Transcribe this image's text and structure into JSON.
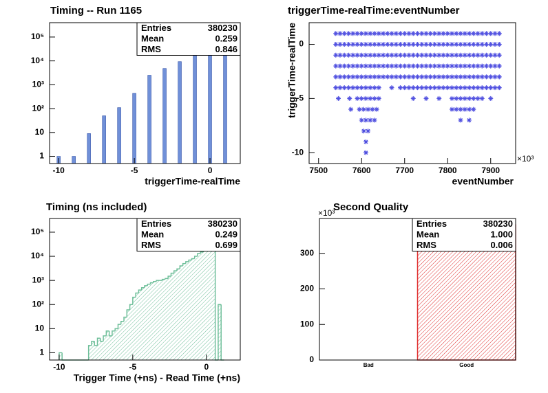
{
  "chart_data": [
    {
      "type": "bar",
      "title": "Timing -- Run 1165",
      "x_label": "triggerTime-realTime",
      "x": [
        -10,
        -9,
        -8,
        -7,
        -6,
        -5,
        -4,
        -3,
        -2,
        -1,
        0,
        1
      ],
      "values": [
        1,
        1,
        9,
        50,
        110,
        440,
        2500,
        4800,
        9300,
        28000,
        210000,
        210000
      ],
      "color": "#7090d8",
      "log_y": true,
      "xlim": [
        -10.6,
        2.0
      ],
      "xticks": [
        -10,
        -5,
        0
      ],
      "ylim": [
        0.5,
        400000
      ],
      "yticks": [
        1,
        10,
        {
          "value": 100,
          "label": "10²"
        },
        {
          "value": 1000,
          "label": "10³"
        },
        {
          "value": 10000,
          "label": "10⁴"
        },
        {
          "value": 100000,
          "label": "10⁵"
        }
      ],
      "stats": [
        {
          "name": "Entries",
          "value": "380230"
        },
        {
          "name": "Mean",
          "value": "0.259"
        },
        {
          "name": "RMS",
          "value": "0.846"
        }
      ]
    },
    {
      "type": "scatter",
      "title": "triggerTime-realTime:eventNumber",
      "x_label": "eventNumber",
      "y_label": "triggerTime-realTime",
      "x_exponent": "×10³",
      "color": "#5050e0",
      "xlim": [
        7478,
        7958
      ],
      "xticks": [
        7500,
        7600,
        7700,
        7800,
        7900
      ],
      "ylim": [
        -11,
        2
      ],
      "yticks": [
        -10,
        -5,
        0
      ],
      "series": [
        {
          "x": [
            7540,
            7550,
            7560,
            7570,
            7580,
            7590,
            7600,
            7610,
            7620,
            7630,
            7640,
            7650,
            7660,
            7670,
            7680,
            7690,
            7700,
            7710,
            7720,
            7730,
            7740,
            7750,
            7760,
            7770,
            7780,
            7790,
            7800,
            7810,
            7820,
            7830,
            7840,
            7850,
            7860,
            7870,
            7880,
            7890,
            7900,
            7910,
            7920
          ],
          "y": [
            1,
            1,
            1,
            1,
            1,
            1,
            1,
            1,
            1,
            1,
            1,
            1,
            1,
            1,
            1,
            1,
            1,
            1,
            1,
            1,
            1,
            1,
            1,
            1,
            1,
            1,
            1,
            1,
            1,
            1,
            1,
            1,
            1,
            1,
            1,
            1,
            1,
            1,
            1
          ]
        },
        {
          "x": [
            7540,
            7550,
            7560,
            7570,
            7580,
            7590,
            7600,
            7610,
            7620,
            7630,
            7640,
            7650,
            7660,
            7670,
            7680,
            7690,
            7700,
            7710,
            7720,
            7730,
            7740,
            7750,
            7760,
            7770,
            7780,
            7790,
            7800,
            7810,
            7820,
            7830,
            7840,
            7850,
            7860,
            7870,
            7880,
            7890,
            7900,
            7910,
            7920
          ],
          "y": [
            0,
            0,
            0,
            0,
            0,
            0,
            0,
            0,
            0,
            0,
            0,
            0,
            0,
            0,
            0,
            0,
            0,
            0,
            0,
            0,
            0,
            0,
            0,
            0,
            0,
            0,
            0,
            0,
            0,
            0,
            0,
            0,
            0,
            0,
            0,
            0,
            0,
            0,
            0
          ]
        },
        {
          "x": [
            7540,
            7550,
            7560,
            7570,
            7580,
            7590,
            7600,
            7610,
            7620,
            7630,
            7640,
            7650,
            7660,
            7670,
            7680,
            7690,
            7700,
            7710,
            7720,
            7730,
            7740,
            7750,
            7760,
            7770,
            7780,
            7790,
            7800,
            7810,
            7820,
            7830,
            7840,
            7850,
            7860,
            7870,
            7880,
            7890,
            7900,
            7910,
            7920
          ],
          "y": [
            -1,
            -1,
            -1,
            -1,
            -1,
            -1,
            -1,
            -1,
            -1,
            -1,
            -1,
            -1,
            -1,
            -1,
            -1,
            -1,
            -1,
            -1,
            -1,
            -1,
            -1,
            -1,
            -1,
            -1,
            -1,
            -1,
            -1,
            -1,
            -1,
            -1,
            -1,
            -1,
            -1,
            -1,
            -1,
            -1,
            -1,
            -1,
            -1
          ]
        },
        {
          "x": [
            7540,
            7550,
            7560,
            7570,
            7580,
            7590,
            7600,
            7610,
            7620,
            7630,
            7640,
            7650,
            7660,
            7670,
            7680,
            7690,
            7700,
            7710,
            7720,
            7730,
            7740,
            7750,
            7760,
            7770,
            7780,
            7790,
            7800,
            7810,
            7820,
            7830,
            7840,
            7850,
            7860,
            7870,
            7880,
            7890,
            7900,
            7910,
            7920
          ],
          "y": [
            -2,
            -2,
            -2,
            -2,
            -2,
            -2,
            -2,
            -2,
            -2,
            -2,
            -2,
            -2,
            -2,
            -2,
            -2,
            -2,
            -2,
            -2,
            -2,
            -2,
            -2,
            -2,
            -2,
            -2,
            -2,
            -2,
            -2,
            -2,
            -2,
            -2,
            -2,
            -2,
            -2,
            -2,
            -2,
            -2,
            -2,
            -2,
            -2
          ]
        },
        {
          "x": [
            7540,
            7550,
            7560,
            7570,
            7580,
            7590,
            7600,
            7610,
            7620,
            7630,
            7640,
            7650,
            7660,
            7670,
            7680,
            7690,
            7700,
            7710,
            7720,
            7730,
            7740,
            7750,
            7760,
            7770,
            7780,
            7790,
            7800,
            7810,
            7820,
            7830,
            7840,
            7850,
            7860,
            7870,
            7880,
            7890,
            7900,
            7910,
            7920
          ],
          "y": [
            -3,
            -3,
            -3,
            -3,
            -3,
            -3,
            -3,
            -3,
            -3,
            -3,
            -3,
            -3,
            -3,
            -3,
            -3,
            -3,
            -3,
            -3,
            -3,
            -3,
            -3,
            -3,
            -3,
            -3,
            -3,
            -3,
            -3,
            -3,
            -3,
            -3,
            -3,
            -3,
            -3,
            -3,
            -3,
            -3,
            -3,
            -3,
            -3
          ]
        },
        {
          "x": [
            7540,
            7550,
            7560,
            7570,
            7580,
            7590,
            7600,
            7610,
            7620,
            7630,
            7640,
            7670,
            7690,
            7700,
            7710,
            7720,
            7730,
            7740,
            7750,
            7760,
            7770,
            7780,
            7790,
            7800,
            7810,
            7820,
            7830,
            7840,
            7850,
            7860,
            7870,
            7880,
            7890,
            7900,
            7910,
            7920
          ],
          "y": [
            -4,
            -4,
            -4,
            -4,
            -4,
            -4,
            -4,
            -4,
            -4,
            -4,
            -4,
            -4,
            -4,
            -4,
            -4,
            -4,
            -4,
            -4,
            -4,
            -4,
            -4,
            -4,
            -4,
            -4,
            -4,
            -4,
            -4,
            -4,
            -4,
            -4,
            -4,
            -4,
            -4,
            -4,
            -4,
            -4
          ]
        },
        {
          "x": [
            7546,
            7572,
            7590,
            7600,
            7610,
            7620,
            7630,
            7640,
            7720,
            7750,
            7780,
            7810,
            7820,
            7830,
            7840,
            7850,
            7860,
            7870,
            7880,
            7900
          ],
          "y": [
            -5,
            -5,
            -5,
            -5,
            -5,
            -5,
            -5,
            -5,
            -5,
            -5,
            -5,
            -5,
            -5,
            -5,
            -5,
            -5,
            -5,
            -5,
            -5,
            -5
          ]
        },
        {
          "x": [
            7575,
            7595,
            7605,
            7615,
            7625,
            7635,
            7810,
            7820,
            7830,
            7840,
            7850,
            7860
          ],
          "y": [
            -6,
            -6,
            -6,
            -6,
            -6,
            -6,
            -6,
            -6,
            -6,
            -6,
            -6,
            -6
          ]
        },
        {
          "x": [
            7600,
            7610,
            7620,
            7630,
            7830,
            7850
          ],
          "y": [
            -7,
            -7,
            -7,
            -7,
            -7,
            -7
          ]
        },
        {
          "x": [
            7605,
            7615
          ],
          "y": [
            -8,
            -8
          ]
        },
        {
          "x": [
            7610
          ],
          "y": [
            -9
          ]
        },
        {
          "x": [
            7610
          ],
          "y": [
            -10
          ]
        }
      ]
    },
    {
      "type": "histogram",
      "title": "Timing (ns included)",
      "x_label": "Trigger Time (+ns) - Read Time (+ns)",
      "color": "#6fbf9a",
      "fill_style": "hatched",
      "log_y": true,
      "bins": [
        -10.0,
        -9.8,
        -9.6,
        -9.4,
        -9.2,
        -9.0,
        -8.8,
        -8.6,
        -8.4,
        -8.2,
        -8.0,
        -7.8,
        -7.6,
        -7.4,
        -7.2,
        -7.0,
        -6.8,
        -6.6,
        -6.4,
        -6.2,
        -6.0,
        -5.8,
        -5.6,
        -5.4,
        -5.2,
        -5.0,
        -4.8,
        -4.6,
        -4.4,
        -4.2,
        -4.0,
        -3.8,
        -3.6,
        -3.4,
        -3.2,
        -3.0,
        -2.8,
        -2.6,
        -2.4,
        -2.2,
        -2.0,
        -1.8,
        -1.6,
        -1.4,
        -1.2,
        -1.0,
        -0.8,
        -0.6,
        -0.4,
        -0.2,
        0.0,
        0.2,
        0.4,
        0.6,
        0.8,
        1.0,
        1.2
      ],
      "values": [
        1,
        0,
        0,
        0,
        0,
        0,
        0,
        0,
        0,
        0,
        2,
        3,
        2,
        4,
        3,
        5,
        8,
        5,
        8,
        10,
        15,
        20,
        30,
        60,
        100,
        200,
        300,
        400,
        500,
        600,
        700,
        800,
        900,
        1000,
        1000,
        1100,
        1200,
        1500,
        2000,
        2500,
        3000,
        4000,
        5000,
        6000,
        7000,
        8000,
        10000,
        13000,
        15000,
        20000,
        20000,
        25000,
        200000,
        0,
        100,
        0
      ],
      "xlim": [
        -10.65,
        2.3
      ],
      "xticks": [
        -10,
        -5,
        0
      ],
      "ylim": [
        0.5,
        370000
      ],
      "yticks": [
        1,
        10,
        {
          "value": 100,
          "label": "10²"
        },
        {
          "value": 1000,
          "label": "10³"
        },
        {
          "value": 10000,
          "label": "10⁴"
        },
        {
          "value": 100000,
          "label": "10⁵"
        }
      ],
      "stats": [
        {
          "name": "Entries",
          "value": "380230"
        },
        {
          "name": "Mean",
          "value": "0.249"
        },
        {
          "name": "RMS",
          "value": "0.699"
        }
      ]
    },
    {
      "type": "bar",
      "title": "Second Quality",
      "y_exponent": "×10³",
      "categories": [
        "Bad",
        "Good"
      ],
      "values": [
        0,
        380.23
      ],
      "color": "#e03030",
      "fill_style": "hatched",
      "ylim": [
        0,
        398
      ],
      "yticks": [
        0,
        100,
        200,
        300
      ],
      "stats": [
        {
          "name": "Entries",
          "value": "380230"
        },
        {
          "name": "Mean",
          "value": "1.000"
        },
        {
          "name": "RMS",
          "value": "0.006"
        }
      ]
    }
  ]
}
